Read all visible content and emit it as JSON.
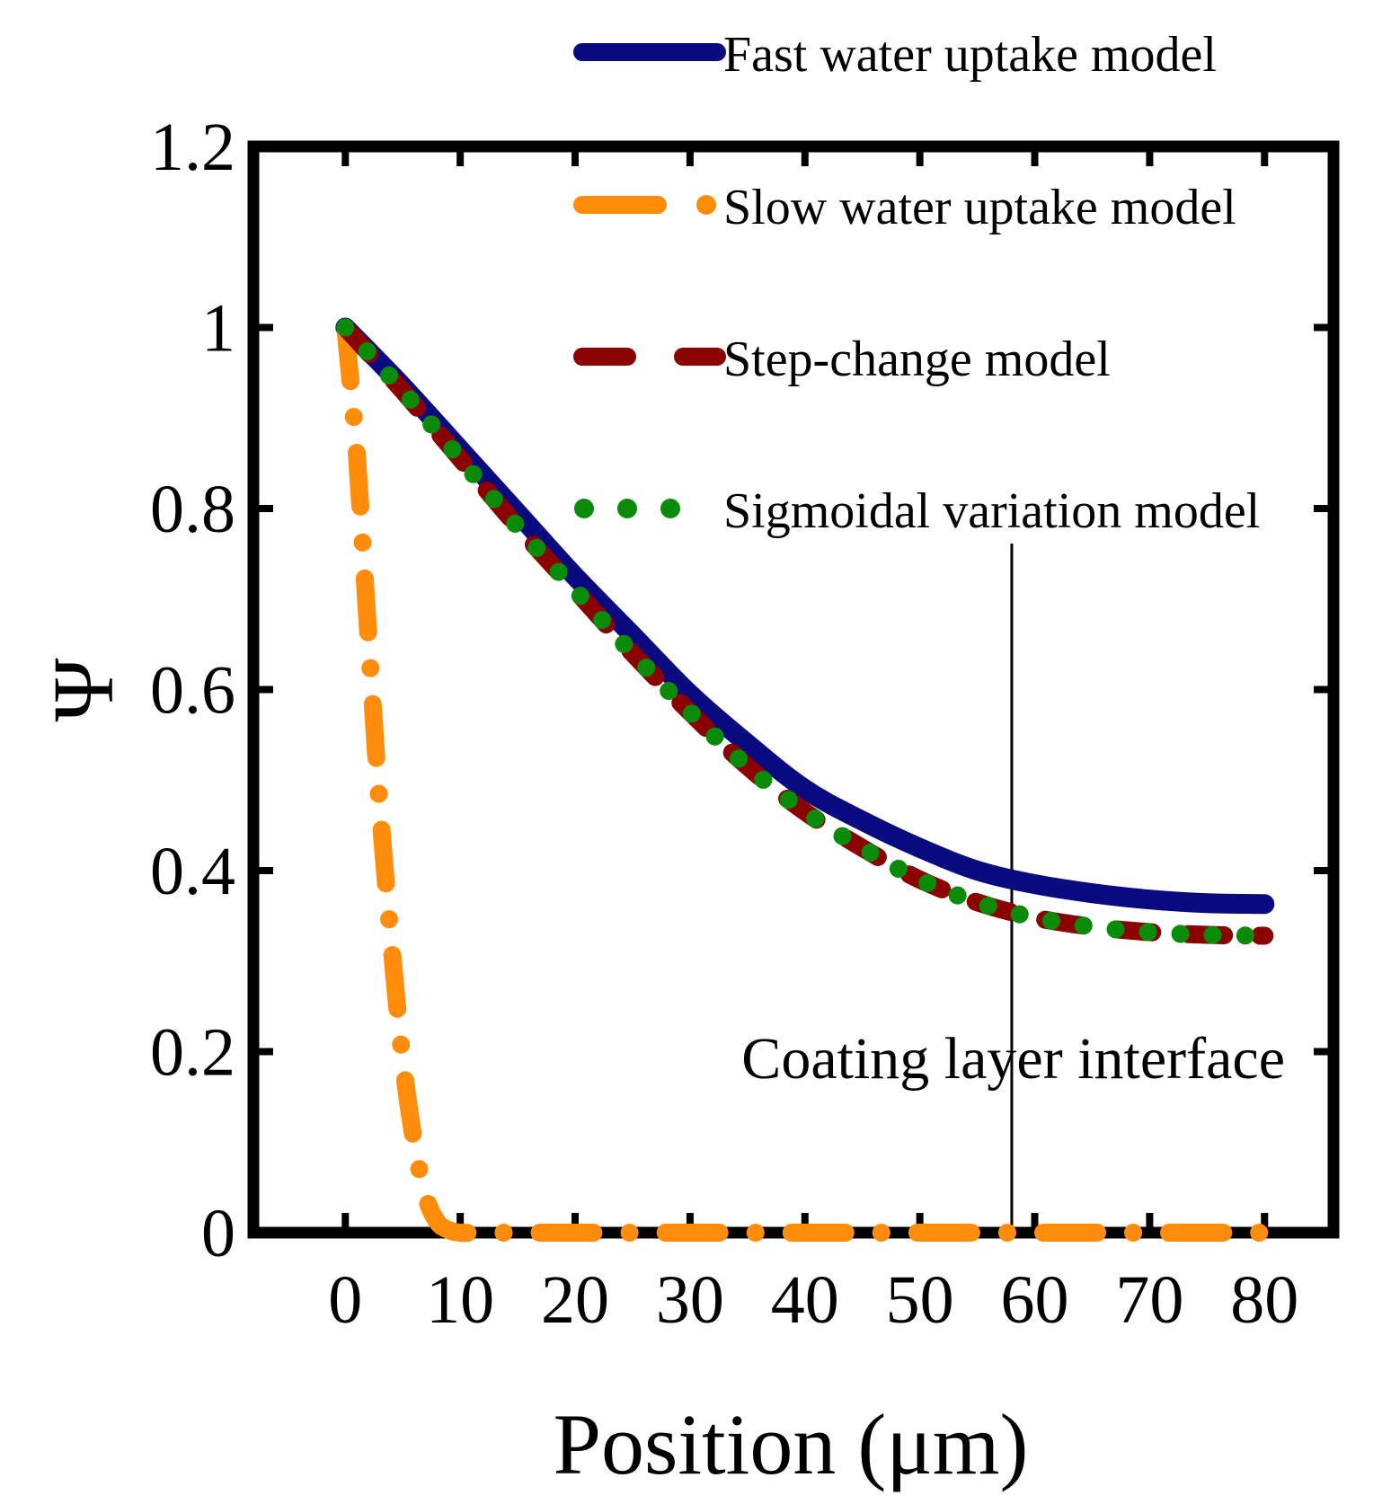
{
  "chart_data": {
    "type": "line",
    "title": "",
    "xlabel": "Position (μm)",
    "ylabel": "Ψ",
    "xlim": [
      -8,
      86
    ],
    "ylim": [
      0,
      1.2
    ],
    "xticks": [
      0,
      10,
      20,
      30,
      40,
      50,
      60,
      70,
      80
    ],
    "yticks": [
      0,
      0.2,
      0.4,
      0.6,
      0.8,
      1,
      1.2
    ],
    "xtick_labels": [
      "0",
      "10",
      "20",
      "30",
      "40",
      "50",
      "60",
      "70",
      "80"
    ],
    "ytick_labels": [
      "0",
      "0.2",
      "0.4",
      "0.6",
      "0.8",
      "1",
      "1.2"
    ],
    "grid": false,
    "legend_position": "top-right",
    "series": [
      {
        "name": "Fast water uptake model",
        "color": "#0a0a80",
        "style": "solid",
        "x": [
          0,
          5,
          10,
          15,
          20,
          25,
          30,
          35,
          40,
          45,
          50,
          55,
          60,
          65,
          70,
          75,
          80
        ],
        "y": [
          1.0,
          0.935,
          0.865,
          0.795,
          0.725,
          0.66,
          0.595,
          0.54,
          0.49,
          0.455,
          0.425,
          0.4,
          0.385,
          0.375,
          0.368,
          0.364,
          0.363
        ]
      },
      {
        "name": "Slow water uptake model",
        "color": "#ff8c0a",
        "style": "dashdot",
        "x": [
          0,
          1,
          2,
          3,
          4,
          5,
          6,
          7,
          8,
          9,
          10,
          12,
          15,
          20,
          30,
          40,
          50,
          60,
          70,
          80
        ],
        "y": [
          1.0,
          0.86,
          0.66,
          0.47,
          0.32,
          0.19,
          0.1,
          0.04,
          0.012,
          0.003,
          0.0,
          0.0,
          0.0,
          0.0,
          0.0,
          0.0,
          0.0,
          0.0,
          0.0,
          0.0
        ]
      },
      {
        "name": "Step-change model",
        "color": "#8b0000",
        "style": "dashed",
        "x": [
          0,
          5,
          10,
          15,
          20,
          25,
          30,
          35,
          40,
          45,
          50,
          55,
          60,
          65,
          70,
          75,
          80
        ],
        "y": [
          1.0,
          0.93,
          0.855,
          0.78,
          0.71,
          0.64,
          0.575,
          0.515,
          0.465,
          0.425,
          0.39,
          0.365,
          0.348,
          0.338,
          0.332,
          0.329,
          0.328
        ]
      },
      {
        "name": "Sigmoidal variation model",
        "color": "#0a8c0a",
        "style": "dotted",
        "x": [
          0,
          5,
          10,
          15,
          20,
          25,
          30,
          35,
          40,
          45,
          50,
          55,
          60,
          65,
          70,
          75,
          80
        ],
        "y": [
          1.0,
          0.93,
          0.855,
          0.78,
          0.71,
          0.64,
          0.575,
          0.515,
          0.465,
          0.425,
          0.39,
          0.365,
          0.348,
          0.338,
          0.332,
          0.329,
          0.328
        ]
      }
    ],
    "annotations": [
      {
        "text": "Coating layer interface",
        "x": 58
      }
    ]
  }
}
